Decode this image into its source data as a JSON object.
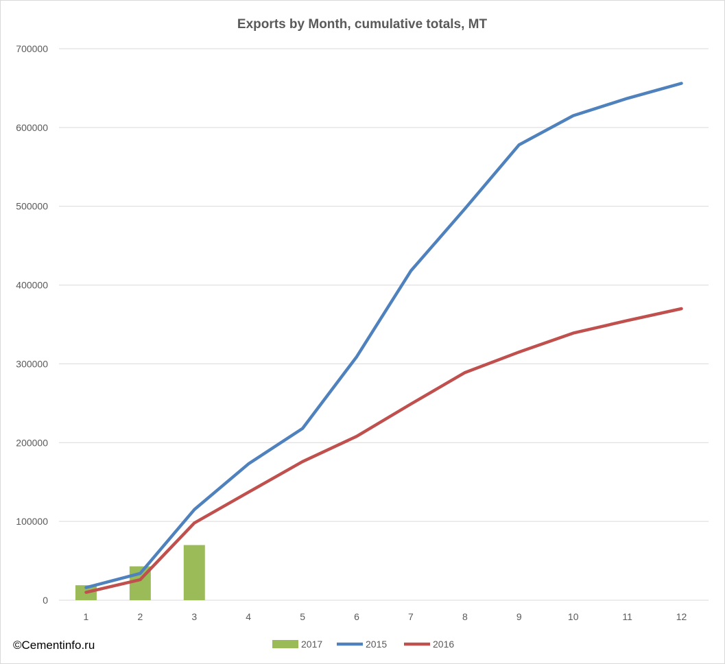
{
  "chart_data": {
    "type": "bar+line",
    "title": "Exports by Month, cumulative totals, MT",
    "xlabel": "",
    "ylabel": "",
    "categories": [
      "1",
      "2",
      "3",
      "4",
      "5",
      "6",
      "7",
      "8",
      "9",
      "10",
      "11",
      "12"
    ],
    "ylim": [
      0,
      700000
    ],
    "yticks": [
      "0",
      "100000",
      "200000",
      "300000",
      "400000",
      "500000",
      "600000",
      "700000"
    ],
    "grid": true,
    "legend_position": "bottom",
    "series": [
      {
        "name": "2017",
        "kind": "bar",
        "color": "#9bbb59",
        "values": [
          19000,
          43000,
          70000,
          null,
          null,
          null,
          null,
          null,
          null,
          null,
          null,
          null
        ]
      },
      {
        "name": "2015",
        "kind": "line",
        "color": "#4f81bd",
        "values": [
          16000,
          34000,
          115000,
          173000,
          218000,
          309000,
          418000,
          497000,
          578000,
          615000,
          637000,
          656000
        ]
      },
      {
        "name": "2016",
        "kind": "line",
        "color": "#c0504d",
        "values": [
          10000,
          26000,
          98000,
          137000,
          176000,
          208000,
          249000,
          289000,
          315000,
          339000,
          355000,
          370000
        ]
      }
    ]
  },
  "credit": "©Cementinfo.ru"
}
